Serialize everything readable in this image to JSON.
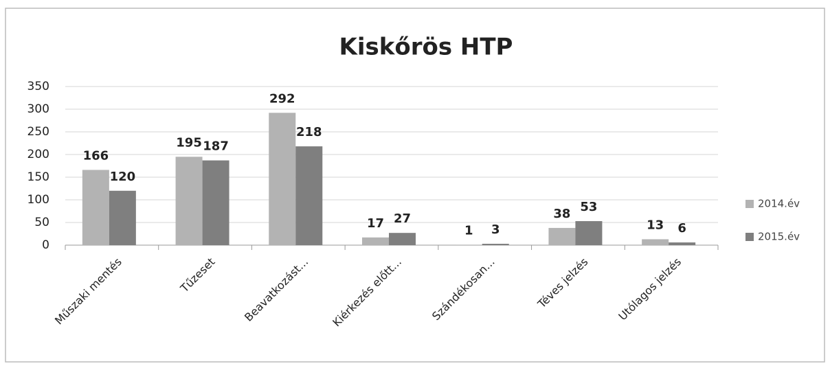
{
  "chart_data": {
    "type": "bar",
    "title": "Kiskőrös HTP",
    "categories": [
      "Műszaki mentés",
      "Tűzeset",
      "Beavatkozást...",
      "Kiérkezés előtt...",
      "Szándékosan...",
      "Téves jelzés",
      "Utólagos jelzés"
    ],
    "series": [
      {
        "name": "2014.év",
        "color": "#b3b3b3",
        "values": [
          166,
          195,
          292,
          17,
          1,
          38,
          13
        ]
      },
      {
        "name": "2015.év",
        "color": "#7f7f7f",
        "values": [
          120,
          187,
          218,
          27,
          3,
          53,
          6
        ]
      }
    ],
    "ylim": [
      0,
      350
    ],
    "yticks": [
      0,
      50,
      100,
      150,
      200,
      250,
      300,
      350
    ],
    "grid": true,
    "legend": "right"
  }
}
